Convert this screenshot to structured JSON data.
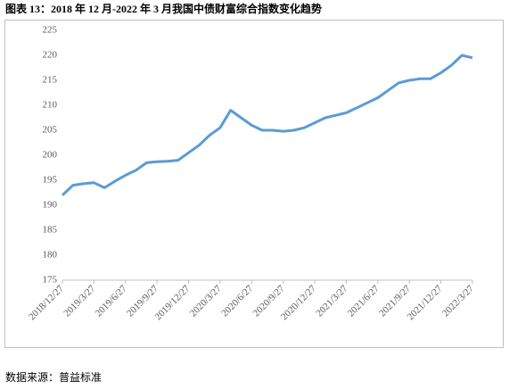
{
  "chart_data": {
    "type": "line",
    "title": "图表 13：2018 年 12 月-2022 年 3 月我国中债财富综合指数变化趋势",
    "source": "数据来源：普益标准",
    "categories": [
      "2018/12/27",
      null,
      null,
      "2019/3/27",
      null,
      null,
      "2019/6/27",
      null,
      null,
      "2019/9/27",
      null,
      null,
      "2019/12/27",
      null,
      null,
      "2020/3/27",
      null,
      null,
      "2020/6/27",
      null,
      null,
      "2020/9/27",
      null,
      null,
      "2020/12/27",
      null,
      null,
      "2021/3/27",
      null,
      null,
      "2021/6/27",
      null,
      null,
      "2021/9/27",
      null,
      null,
      "2021/12/27",
      null,
      null,
      "2022/3/27"
    ],
    "values": [
      192,
      194,
      194.3,
      194.5,
      193.5,
      194.8,
      196,
      197,
      198.5,
      198.7,
      198.8,
      199,
      200.5,
      202,
      204,
      205.5,
      209,
      207.5,
      206,
      205,
      205,
      204.8,
      205,
      205.5,
      206.5,
      207.5,
      208,
      208.5,
      209.5,
      210.5,
      211.5,
      213,
      214.5,
      215,
      215.3,
      215.3,
      216.5,
      218,
      220,
      219.5
    ],
    "color": "#5b9bd5",
    "ylim": [
      175,
      225
    ],
    "yticks": [
      175,
      180,
      185,
      190,
      195,
      200,
      205,
      210,
      215,
      220,
      225
    ]
  }
}
